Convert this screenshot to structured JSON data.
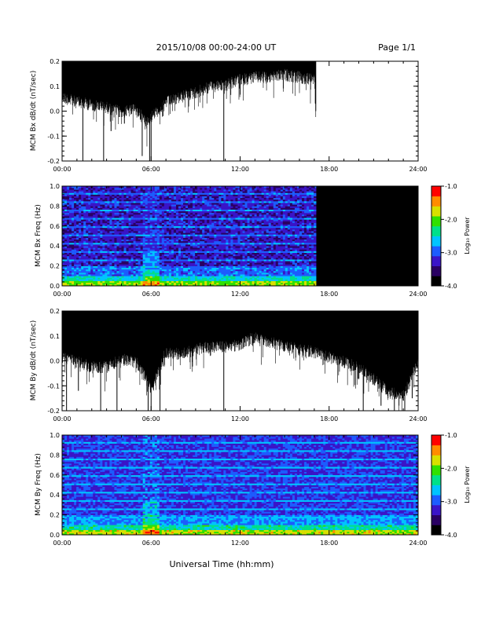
{
  "header": {
    "date_title": "2015/10/08   00:00-24:00 UT",
    "page_label": "Page 1/1"
  },
  "footer": {
    "x_axis_title": "Universal Time (hh:mm)"
  },
  "time_ticks": [
    "00:00",
    "06:00",
    "12:00",
    "18:00",
    "24:00"
  ],
  "colorbar": {
    "label": "Log₁₀ Power",
    "ticks": [
      "-1.0",
      "-2.0",
      "-3.0",
      "-4.0"
    ],
    "range": [
      -4.0,
      -1.0
    ],
    "colors": [
      "#000000",
      "#2a0063",
      "#3a14c8",
      "#1d5cff",
      "#00c4ff",
      "#00e08a",
      "#30e000",
      "#d8e000",
      "#ff8c00",
      "#ff0000"
    ]
  },
  "chart_data": [
    {
      "type": "line",
      "title": "",
      "ylabel": "MCM Bx dB/dt (nT/sec)",
      "xlabel": "",
      "xlim": [
        "00:00",
        "24:00"
      ],
      "ylim": [
        -0.2,
        0.2
      ],
      "yticks": [
        "0.2",
        "0.1",
        "0.0",
        "-0.1",
        "-0.2"
      ],
      "data_end_hour": 17.1,
      "envelope": {
        "hours": [
          0,
          1,
          2,
          3,
          4,
          5,
          5.7,
          6,
          7,
          8,
          9,
          10,
          11,
          12,
          13,
          14,
          15,
          16,
          17,
          17.1
        ],
        "upper": [
          0.2,
          0.2,
          0.2,
          0.2,
          0.2,
          0.2,
          0.2,
          0.2,
          0.2,
          0.2,
          0.2,
          0.2,
          0.2,
          0.2,
          0.2,
          0.2,
          0.2,
          0.2,
          0.2,
          0.2
        ],
        "lower": [
          0.08,
          0.06,
          0.05,
          0.04,
          0.02,
          0.03,
          -0.02,
          0.0,
          0.06,
          0.08,
          0.1,
          0.12,
          0.13,
          0.15,
          0.16,
          0.16,
          0.17,
          0.16,
          0.15,
          0.0
        ]
      },
      "spikes": [
        [
          1.4,
          -0.2
        ],
        [
          2.8,
          -0.2
        ],
        [
          5.4,
          -0.18
        ],
        [
          5.9,
          -0.2
        ],
        [
          6.0,
          -0.2
        ],
        [
          6.8,
          -0.02
        ],
        [
          10.9,
          -0.2
        ],
        [
          4.2,
          -0.05
        ],
        [
          3.3,
          -0.08
        ]
      ]
    },
    {
      "type": "heatmap",
      "title": "",
      "ylabel": "MCM Bx Freq (Hz)",
      "xlabel": "",
      "xlim": [
        "00:00",
        "24:00"
      ],
      "ylim": [
        0.0,
        1.0
      ],
      "yticks": [
        "1.0",
        "0.8",
        "0.6",
        "0.4",
        "0.2",
        "0.0"
      ],
      "data_end_hour": 17.1,
      "colorbar_range": [
        -4.0,
        -1.0
      ]
    },
    {
      "type": "line",
      "title": "",
      "ylabel": "MCM By dB/dt (nT/sec)",
      "xlabel": "",
      "xlim": [
        "00:00",
        "24:00"
      ],
      "ylim": [
        -0.2,
        0.2
      ],
      "yticks": [
        "0.2",
        "0.1",
        "0.0",
        "-0.1",
        "-0.2"
      ],
      "data_end_hour": 24.0,
      "envelope": {
        "hours": [
          0,
          1,
          2,
          3,
          4,
          5,
          5.7,
          6,
          7,
          8,
          9,
          10,
          11,
          12,
          13,
          14,
          15,
          16,
          17,
          18,
          19,
          20,
          21,
          22,
          23,
          24
        ],
        "upper": [
          0.2,
          0.2,
          0.2,
          0.2,
          0.2,
          0.2,
          0.2,
          0.2,
          0.2,
          0.2,
          0.2,
          0.2,
          0.2,
          0.2,
          0.2,
          0.2,
          0.2,
          0.2,
          0.2,
          0.2,
          0.2,
          0.2,
          0.2,
          0.2,
          0.2,
          0.2
        ],
        "lower": [
          0.04,
          0.02,
          0.0,
          0.0,
          0.03,
          0.02,
          -0.05,
          -0.1,
          0.06,
          0.05,
          0.07,
          0.08,
          0.08,
          0.09,
          0.12,
          0.1,
          0.08,
          0.07,
          0.06,
          0.04,
          0.02,
          0.0,
          -0.05,
          -0.1,
          -0.12,
          0.02
        ]
      },
      "spikes": [
        [
          0.3,
          -0.2
        ],
        [
          1.1,
          -0.12
        ],
        [
          2.6,
          -0.2
        ],
        [
          3.7,
          -0.2
        ],
        [
          5.8,
          -0.2
        ],
        [
          6.0,
          -0.2
        ],
        [
          6.6,
          -0.2
        ],
        [
          10.9,
          -0.2
        ],
        [
          20.3,
          -0.2
        ],
        [
          21.5,
          -0.18
        ],
        [
          22.4,
          -0.2
        ],
        [
          23.1,
          -0.2
        ],
        [
          23.6,
          -0.15
        ]
      ]
    },
    {
      "type": "heatmap",
      "title": "",
      "ylabel": "MCM By Freq (Hz)",
      "xlabel": "",
      "xlim": [
        "00:00",
        "24:00"
      ],
      "ylim": [
        0.0,
        1.0
      ],
      "yticks": [
        "1.0",
        "0.8",
        "0.6",
        "0.4",
        "0.2",
        "0.0"
      ],
      "data_end_hour": 24.0,
      "colorbar_range": [
        -4.0,
        -1.0
      ]
    }
  ]
}
